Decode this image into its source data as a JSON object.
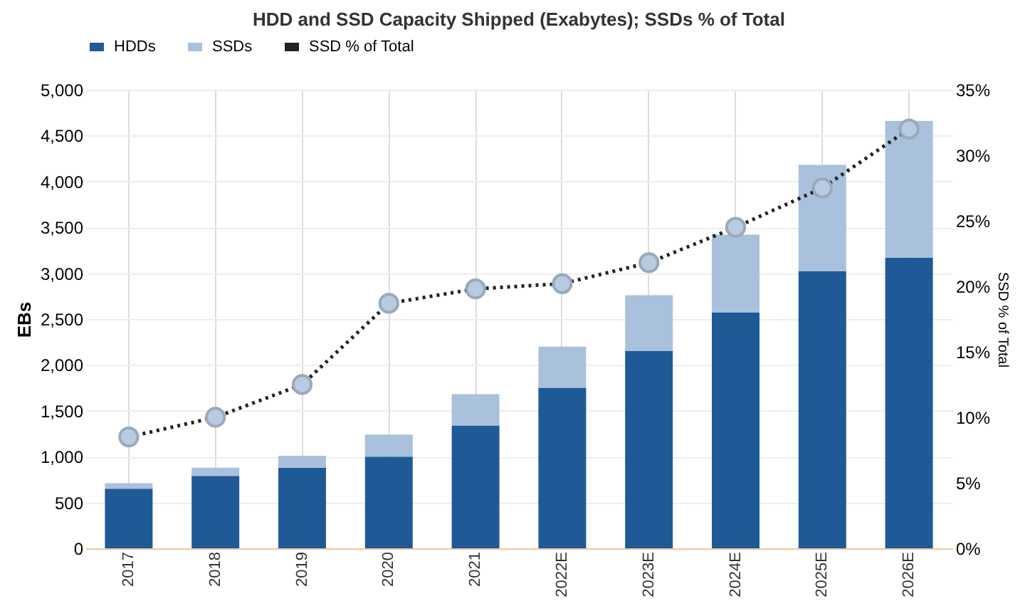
{
  "chart_data": {
    "type": "bar",
    "title": "HDD and SSD Capacity Shipped (Exabytes); SSDs % of Total",
    "categories": [
      "2017",
      "2018",
      "2019",
      "2020",
      "2021",
      "2022E",
      "2023E",
      "2024E",
      "2025E",
      "2026E"
    ],
    "stacked": true,
    "series": [
      {
        "name": "HDDs",
        "color": "#1f5a96",
        "values": [
          650,
          790,
          880,
          1000,
          1340,
          1750,
          2150,
          2570,
          3020,
          3170
        ]
      },
      {
        "name": "SSDs",
        "color": "#a9c1dc",
        "values": [
          60,
          90,
          130,
          240,
          340,
          450,
          610,
          850,
          1160,
          1490
        ]
      },
      {
        "name": "SSD % of Total",
        "type": "line",
        "axis": "y2",
        "color": "#222222",
        "line_style": "dotted",
        "marker": "circle",
        "values": [
          8.5,
          10,
          12.5,
          18.7,
          19.8,
          20.2,
          21.8,
          24.5,
          27.5,
          32
        ]
      }
    ],
    "ylabel": "EBs",
    "y2label": "SSD % of Total",
    "ylim": [
      0,
      5000
    ],
    "yticks": [
      0,
      500,
      {
        "value": 1000,
        "label": "1,000"
      },
      {
        "value": 1500,
        "label": "1,500"
      },
      {
        "value": 2000,
        "label": "2,000"
      },
      {
        "value": 2500,
        "label": "2,500"
      },
      {
        "value": 3000,
        "label": "3,000"
      },
      {
        "value": 3500,
        "label": "3,500"
      },
      {
        "value": 4000,
        "label": "4,000"
      },
      {
        "value": 4500,
        "label": "4,500"
      },
      {
        "value": 5000,
        "label": "5,000"
      }
    ],
    "y2lim": [
      0,
      35
    ],
    "y2ticks": [
      {
        "value": 0,
        "label": "0%"
      },
      {
        "value": 5,
        "label": "5%"
      },
      {
        "value": 10,
        "label": "10%"
      },
      {
        "value": 15,
        "label": "15%"
      },
      {
        "value": 20,
        "label": "20%"
      },
      {
        "value": 25,
        "label": "25%"
      },
      {
        "value": 30,
        "label": "30%"
      },
      {
        "value": 35,
        "label": "35%"
      }
    ],
    "grid": true,
    "legend": "top"
  }
}
